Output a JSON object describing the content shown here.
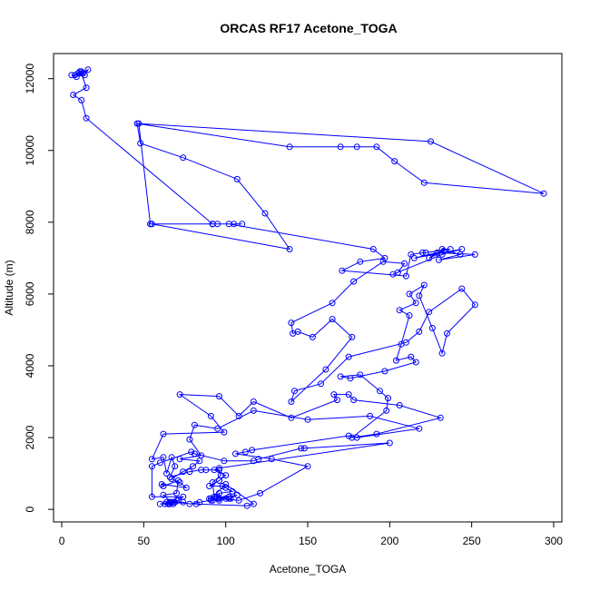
{
  "chart_data": {
    "type": "line",
    "title": "ORCAS RF17 Acetone_TOGA",
    "xlabel": "Acetone_TOGA",
    "ylabel": "Altitude (m)",
    "xlim": [
      -5,
      305
    ],
    "ylim": [
      -350,
      12700
    ],
    "xticks": [
      0,
      50,
      100,
      150,
      200,
      250,
      300
    ],
    "yticks": [
      0,
      2000,
      4000,
      6000,
      8000,
      10000,
      12000
    ],
    "x_tick_labels": [
      "0",
      "50",
      "100",
      "150",
      "200",
      "250",
      "300"
    ],
    "y_tick_labels": [
      "0",
      "2000",
      "4000",
      "6000",
      "8000",
      "10000",
      "12000"
    ],
    "grid": false,
    "markers": "open-circle",
    "color": "#0000ff",
    "series": [
      {
        "points": [
          [
            12,
            12200
          ],
          [
            10,
            12150
          ],
          [
            8,
            12100
          ],
          [
            11,
            12200
          ],
          [
            13,
            12150
          ],
          [
            9,
            12050
          ],
          [
            6,
            12100
          ],
          [
            14,
            12100
          ],
          [
            16,
            12250
          ],
          [
            12,
            12150
          ],
          [
            15,
            11750
          ],
          [
            7,
            11550
          ],
          [
            12,
            11400
          ],
          [
            15,
            10900
          ],
          [
            92,
            7950
          ],
          [
            95,
            7950
          ],
          [
            54,
            7950
          ],
          [
            105,
            7950
          ],
          [
            110,
            7950
          ],
          [
            92,
            7950
          ],
          [
            54,
            7950
          ],
          [
            47,
            10750
          ],
          [
            225,
            10250
          ],
          [
            294,
            8800
          ],
          [
            221,
            9100
          ],
          [
            203,
            9700
          ],
          [
            192,
            10100
          ],
          [
            180,
            10100
          ],
          [
            170,
            10100
          ],
          [
            139,
            10100
          ],
          [
            46,
            10750
          ],
          [
            48,
            10200
          ],
          [
            74,
            9800
          ],
          [
            107,
            9200
          ],
          [
            124,
            8250
          ],
          [
            139,
            7250
          ],
          [
            55,
            7950
          ],
          [
            92,
            7950
          ],
          [
            102,
            7950
          ],
          [
            190,
            7250
          ],
          [
            197,
            7000
          ],
          [
            182,
            6900
          ],
          [
            171,
            6650
          ],
          [
            210,
            6500
          ],
          [
            213,
            7100
          ],
          [
            220,
            7150
          ],
          [
            222,
            7150
          ],
          [
            237,
            7250
          ],
          [
            232,
            7250
          ],
          [
            243,
            7100
          ],
          [
            230,
            6950
          ],
          [
            252,
            7100
          ],
          [
            229,
            7150
          ],
          [
            224,
            7000
          ],
          [
            233,
            7200
          ],
          [
            215,
            7000
          ],
          [
            244,
            7250
          ],
          [
            232,
            7100
          ],
          [
            202,
            6550
          ],
          [
            205,
            6600
          ],
          [
            209,
            6850
          ],
          [
            196,
            6900
          ],
          [
            178,
            6350
          ],
          [
            165,
            5750
          ],
          [
            140,
            5200
          ],
          [
            141,
            4900
          ],
          [
            144,
            4950
          ],
          [
            153,
            4800
          ],
          [
            165,
            5300
          ],
          [
            177,
            4800
          ],
          [
            161,
            3900
          ],
          [
            140,
            3000
          ],
          [
            142,
            3300
          ],
          [
            158,
            3500
          ],
          [
            175,
            4250
          ],
          [
            210,
            4650
          ],
          [
            218,
            4950
          ],
          [
            224,
            5500
          ],
          [
            244,
            6150
          ],
          [
            252,
            5700
          ],
          [
            235,
            4900
          ],
          [
            232,
            4350
          ],
          [
            226,
            5050
          ],
          [
            218,
            5950
          ],
          [
            221,
            6250
          ],
          [
            212,
            6000
          ],
          [
            216,
            5750
          ],
          [
            206,
            5550
          ],
          [
            212,
            5400
          ],
          [
            207,
            4600
          ],
          [
            204,
            4150
          ],
          [
            213,
            4250
          ],
          [
            216,
            4100
          ],
          [
            197,
            3850
          ],
          [
            176,
            3650
          ],
          [
            170,
            3700
          ],
          [
            182,
            3750
          ],
          [
            194,
            3300
          ],
          [
            199,
            3100
          ],
          [
            198,
            2750
          ],
          [
            177,
            2000
          ],
          [
            192,
            2100
          ],
          [
            231,
            2550
          ],
          [
            206,
            2900
          ],
          [
            178,
            3050
          ],
          [
            175,
            3200
          ],
          [
            166,
            3200
          ],
          [
            168,
            3050
          ],
          [
            140,
            2550
          ],
          [
            117,
            3000
          ],
          [
            108,
            2600
          ],
          [
            96,
            3150
          ],
          [
            72,
            3200
          ],
          [
            91,
            2600
          ],
          [
            99,
            2150
          ],
          [
            62,
            2100
          ],
          [
            55,
            1400
          ],
          [
            62,
            1450
          ],
          [
            64,
            1000
          ],
          [
            67,
            1450
          ],
          [
            69,
            1200
          ],
          [
            66,
            900
          ],
          [
            78,
            1050
          ],
          [
            85,
            1100
          ],
          [
            88,
            1100
          ],
          [
            96,
            1100
          ],
          [
            97,
            950
          ],
          [
            92,
            750
          ],
          [
            93,
            350
          ],
          [
            102,
            350
          ],
          [
            107,
            400
          ],
          [
            102,
            300
          ],
          [
            96,
            300
          ],
          [
            108,
            250
          ],
          [
            121,
            450
          ],
          [
            150,
            1200
          ],
          [
            128,
            1400
          ],
          [
            106,
            1550
          ],
          [
            112,
            1600
          ],
          [
            116,
            1650
          ],
          [
            175,
            2050
          ],
          [
            180,
            2000
          ],
          [
            218,
            2250
          ],
          [
            188,
            2600
          ],
          [
            150,
            2500
          ],
          [
            117,
            2750
          ],
          [
            95,
            2250
          ],
          [
            81,
            2350
          ],
          [
            78,
            1950
          ],
          [
            85,
            1500
          ],
          [
            72,
            1400
          ],
          [
            84,
            1350
          ],
          [
            80,
            1200
          ],
          [
            74,
            1050
          ],
          [
            67,
            850
          ],
          [
            72,
            750
          ],
          [
            76,
            600
          ],
          [
            61,
            700
          ],
          [
            62,
            650
          ],
          [
            71,
            800
          ],
          [
            70,
            450
          ],
          [
            62,
            400
          ],
          [
            67,
            200
          ],
          [
            60,
            150
          ],
          [
            63,
            150
          ],
          [
            68,
            200
          ],
          [
            65,
            150
          ],
          [
            66,
            200
          ],
          [
            70,
            250
          ],
          [
            66,
            150
          ],
          [
            66,
            200
          ],
          [
            64,
            200
          ],
          [
            68,
            150
          ],
          [
            71,
            250
          ],
          [
            74,
            350
          ],
          [
            55,
            350
          ],
          [
            55,
            1200
          ],
          [
            60,
            1300
          ],
          [
            79,
            1600
          ],
          [
            81,
            1550
          ],
          [
            99,
            1350
          ],
          [
            117,
            1350
          ],
          [
            120,
            1400
          ],
          [
            146,
            1700
          ],
          [
            148,
            1700
          ],
          [
            200,
            1850
          ],
          [
            96,
            1150
          ],
          [
            93,
            1100
          ],
          [
            100,
            950
          ],
          [
            96,
            800
          ],
          [
            90,
            650
          ],
          [
            98,
            650
          ],
          [
            100,
            600
          ],
          [
            104,
            500
          ],
          [
            96,
            450
          ],
          [
            95,
            300
          ],
          [
            91,
            250
          ],
          [
            84,
            200
          ],
          [
            78,
            150
          ],
          [
            74,
            200
          ],
          [
            69,
            200
          ],
          [
            65,
            150
          ],
          [
            66,
            200
          ],
          [
            82,
            150
          ],
          [
            113,
            100
          ],
          [
            117,
            150
          ],
          [
            100,
            700
          ],
          [
            91,
            300
          ],
          [
            92,
            250
          ],
          [
            102,
            350
          ],
          [
            95,
            350
          ],
          [
            100,
            300
          ],
          [
            103,
            300
          ],
          [
            96,
            250
          ],
          [
            90,
            300
          ]
        ]
      }
    ]
  }
}
